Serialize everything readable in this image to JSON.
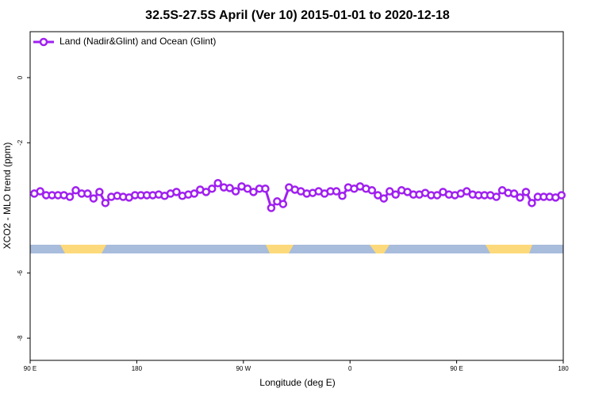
{
  "chart_data": {
    "type": "line",
    "title": "32.5S-27.5S April (Ver 10)   2015-01-01 to 2020-12-18",
    "x_label": "Longitude (deg E)",
    "y_label": "XCO2 - MLO trend (ppm)",
    "xlim": [
      90,
      540
    ],
    "ylim": [
      -8.68,
      1.41
    ],
    "xticks": [
      {
        "value": 90,
        "label": "90 E"
      },
      180,
      {
        "value": 270,
        "label": "90 W"
      },
      {
        "value": 360,
        "label": "0"
      },
      {
        "value": 450,
        "label": "90 E"
      },
      {
        "value": 540,
        "label": "180"
      }
    ],
    "yticks": [
      0,
      -2,
      -6,
      -8
    ],
    "legend_position": "top-left",
    "x": [
      93.5,
      98.5,
      103.5,
      108.5,
      113.5,
      118.5,
      123.5,
      128.5,
      133.5,
      138.5,
      143.5,
      148.5,
      153.5,
      158.5,
      163.5,
      168.5,
      173.5,
      178.5,
      183.5,
      188.5,
      193.5,
      198.5,
      203.5,
      208.5,
      213.5,
      218.5,
      223.5,
      228.5,
      233.5,
      238.5,
      243.5,
      248.5,
      253.5,
      258.5,
      263.5,
      268.5,
      273.5,
      278.5,
      283.5,
      288.5,
      293.5,
      298.5,
      303.5,
      308.5,
      313.5,
      318.5,
      323.5,
      328.5,
      333.5,
      338.5,
      343.5,
      348.5,
      353.5,
      358.5,
      363.5,
      368.5,
      373.5,
      378.5,
      383.5,
      388.5,
      393.5,
      398.5,
      403.5,
      408.5,
      413.5,
      418.5,
      423.5,
      428.5,
      433.5,
      438.5,
      443.5,
      448.5,
      453.5,
      458.5,
      463.5,
      468.5,
      473.5,
      478.5,
      483.5,
      488.5,
      493.5,
      498.5,
      503.5,
      508.5,
      513.5,
      518.5,
      523.5,
      528.5,
      533.5,
      538.5
    ],
    "series": [
      {
        "name": "Land (Nadir&Glint) and Ocean (Glint)",
        "color": "#a020f0",
        "values": [
          -3.56,
          -3.49,
          -3.61,
          -3.61,
          -3.61,
          -3.61,
          -3.66,
          -3.46,
          -3.56,
          -3.56,
          -3.71,
          -3.51,
          -3.85,
          -3.66,
          -3.63,
          -3.66,
          -3.68,
          -3.61,
          -3.61,
          -3.61,
          -3.61,
          -3.59,
          -3.63,
          -3.56,
          -3.51,
          -3.63,
          -3.59,
          -3.56,
          -3.44,
          -3.51,
          -3.41,
          -3.24,
          -3.37,
          -3.39,
          -3.49,
          -3.34,
          -3.41,
          -3.51,
          -3.41,
          -3.41,
          -4.0,
          -3.8,
          -3.88,
          -3.37,
          -3.44,
          -3.49,
          -3.56,
          -3.54,
          -3.49,
          -3.56,
          -3.49,
          -3.49,
          -3.63,
          -3.37,
          -3.41,
          -3.34,
          -3.41,
          -3.46,
          -3.61,
          -3.71,
          -3.49,
          -3.59,
          -3.46,
          -3.51,
          -3.59,
          -3.59,
          -3.54,
          -3.61,
          -3.61,
          -3.51,
          -3.59,
          -3.61,
          -3.56,
          -3.49,
          -3.59,
          -3.61,
          -3.61,
          -3.61,
          -3.66,
          -3.46,
          -3.54,
          -3.56,
          -3.68,
          -3.51,
          -3.85,
          -3.66,
          -3.66,
          -3.66,
          -3.68,
          -3.61
        ]
      }
    ]
  }
}
